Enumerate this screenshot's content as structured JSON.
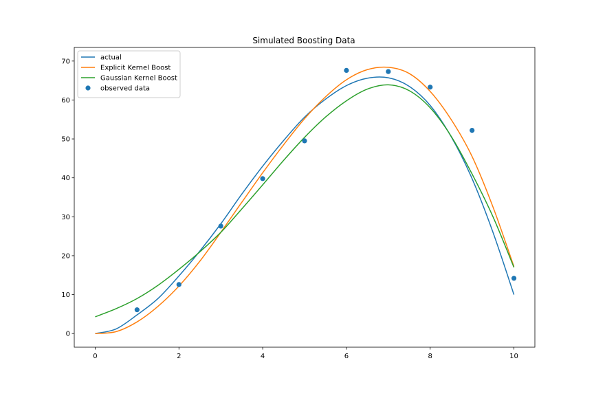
{
  "chart_data": {
    "type": "line",
    "title": "Simulated Boosting Data",
    "xlabel": "",
    "ylabel": "",
    "xlim": [
      -0.5,
      10.5
    ],
    "ylim": [
      -3.5,
      73.5
    ],
    "xticks": [
      0,
      2,
      4,
      6,
      8,
      10
    ],
    "yticks": [
      0,
      10,
      20,
      30,
      40,
      50,
      60,
      70
    ],
    "grid": false,
    "legend_position": "upper-left",
    "series": [
      {
        "name": "actual",
        "kind": "line",
        "color": "#1f77b4",
        "x": [
          0,
          0.5,
          1,
          1.5,
          2,
          2.5,
          3,
          3.5,
          4,
          4.5,
          5,
          5.5,
          6,
          6.5,
          7,
          7.5,
          8,
          8.5,
          9,
          9.5,
          10
        ],
        "y": [
          0,
          1.2,
          4.8,
          9.0,
          14.8,
          21.2,
          28.2,
          35.8,
          43.0,
          49.6,
          55.6,
          60.2,
          63.7,
          65.6,
          65.7,
          63.5,
          58.6,
          50.6,
          39.8,
          26.0,
          10.0
        ]
      },
      {
        "name": "Explicit Kernel Boost",
        "kind": "line",
        "color": "#ff7f0e",
        "x": [
          0,
          0.5,
          1,
          1.5,
          2,
          2.5,
          3,
          3.5,
          4,
          4.5,
          5,
          5.5,
          6,
          6.5,
          7,
          7.5,
          8,
          8.5,
          9,
          9.5,
          10
        ],
        "y": [
          0,
          0.5,
          3.0,
          7.0,
          12.2,
          18.6,
          26.0,
          33.7,
          41.3,
          48.5,
          55.2,
          60.8,
          65.2,
          67.8,
          68.4,
          66.8,
          62.2,
          55.0,
          45.5,
          32.5,
          17.2
        ]
      },
      {
        "name": "Gaussian Kernel Boost",
        "kind": "line",
        "color": "#2ca02c",
        "x": [
          0,
          0.5,
          1,
          1.5,
          2,
          2.5,
          3,
          3.5,
          4,
          4.5,
          5,
          5.5,
          6,
          6.5,
          7,
          7.5,
          8,
          8.5,
          9,
          9.5,
          10
        ],
        "y": [
          4.3,
          6.4,
          9.0,
          12.4,
          16.5,
          21.0,
          26.0,
          32.0,
          38.2,
          44.5,
          50.4,
          55.6,
          59.8,
          62.8,
          63.9,
          62.4,
          58.0,
          50.7,
          41.0,
          30.0,
          17.0
        ]
      },
      {
        "name": "observed data",
        "kind": "scatter",
        "color": "#1f77b4",
        "x": [
          1,
          2,
          3,
          4,
          5,
          6,
          7,
          8,
          9,
          10
        ],
        "y": [
          6.1,
          12.6,
          27.6,
          39.8,
          49.5,
          67.6,
          67.3,
          63.3,
          52.2,
          14.2
        ]
      }
    ]
  }
}
